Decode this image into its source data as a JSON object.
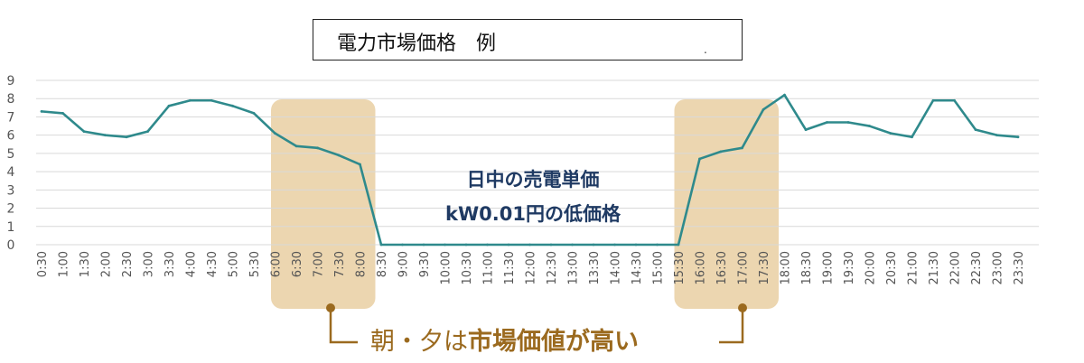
{
  "colors": {
    "line": "#2f8a8c",
    "highlight_fill": "#ecd6b0",
    "highlight_text": "#9b6a1f",
    "note_text": "#1f3a63",
    "grid": "#d9d9d9",
    "axis_text": "#555555"
  },
  "title_box": {
    "title": "電力市場価格　例",
    "tick": "."
  },
  "center_note": {
    "line1": "日中の売電単価",
    "line2": "kW0.01円の低価格"
  },
  "bottom_note": {
    "dash_left": "—",
    "prefix": "朝・夕は",
    "emphasis": "市場価値が高い",
    "dash_right": "—"
  },
  "chart_data": {
    "type": "line",
    "title": "電力市場価格　例",
    "categories": [
      "0:30",
      "1:00",
      "1:30",
      "2:00",
      "2:30",
      "3:00",
      "3:30",
      "4:00",
      "4:30",
      "5:00",
      "5:30",
      "6:00",
      "6:30",
      "7:00",
      "7:30",
      "8:00",
      "8:30",
      "9:00",
      "9:30",
      "10:00",
      "10:30",
      "11:00",
      "11:30",
      "12:00",
      "12:30",
      "13:00",
      "13:30",
      "14:00",
      "14:30",
      "15:00",
      "15:30",
      "16:00",
      "16:30",
      "17:00",
      "17:30",
      "18:00",
      "18:30",
      "19:00",
      "19:30",
      "20:00",
      "20:30",
      "21:00",
      "21:30",
      "22:00",
      "22:30",
      "23:00",
      "23:30"
    ],
    "series": [
      {
        "values": [
          7.3,
          7.2,
          6.2,
          6.0,
          5.9,
          6.2,
          7.6,
          7.9,
          7.9,
          7.6,
          7.2,
          6.1,
          5.4,
          5.3,
          4.9,
          4.4,
          0.0,
          0.0,
          0.0,
          0.0,
          0.0,
          0.0,
          0.0,
          0.0,
          0.0,
          0.0,
          0.0,
          0.0,
          0.0,
          0.0,
          0.0,
          4.7,
          5.1,
          5.3,
          7.4,
          8.2,
          6.3,
          6.7,
          6.7,
          6.5,
          6.1,
          5.9,
          7.9,
          7.9,
          6.3,
          6.0,
          5.9
        ]
      }
    ],
    "yticks": [
      "0",
      "1",
      "2",
      "3",
      "4",
      "5",
      "6",
      "7",
      "8",
      "9"
    ],
    "ylim": [
      0,
      9
    ],
    "grid": true,
    "highlight_ranges": [
      {
        "from": "6:30",
        "to": "8:00"
      },
      {
        "from": "16:00",
        "to": "17:30"
      }
    ],
    "xlabel": "",
    "ylabel": ""
  }
}
